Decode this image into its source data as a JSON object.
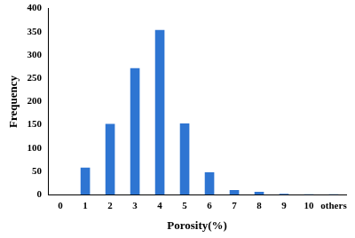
{
  "chart_data": {
    "type": "bar",
    "x_label": "Porosity(%)",
    "y_label": "Frequency",
    "categories": [
      "0",
      "1",
      "2",
      "3",
      "4",
      "5",
      "6",
      "7",
      "8",
      "9",
      "10",
      "others"
    ],
    "values": [
      0,
      58,
      152,
      272,
      354,
      153,
      48,
      10,
      6,
      2,
      1,
      1
    ],
    "color": "#2e75d2",
    "ylim": [
      0,
      400
    ],
    "yticks": [
      0,
      50,
      100,
      150,
      200,
      250,
      300,
      350,
      400
    ],
    "grid": false
  }
}
